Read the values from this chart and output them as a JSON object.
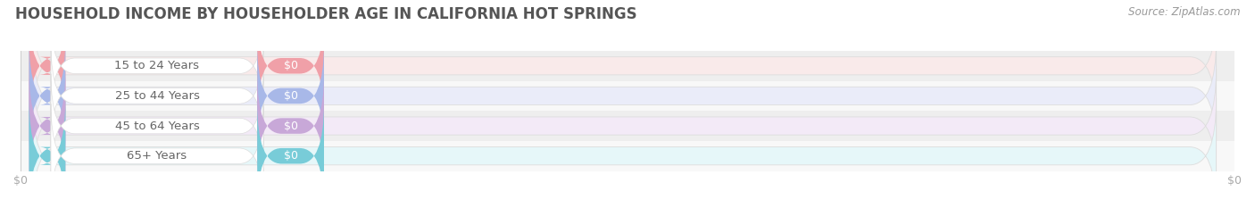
{
  "title": "HOUSEHOLD INCOME BY HOUSEHOLDER AGE IN CALIFORNIA HOT SPRINGS",
  "source": "Source: ZipAtlas.com",
  "categories": [
    "15 to 24 Years",
    "25 to 44 Years",
    "45 to 64 Years",
    "65+ Years"
  ],
  "values": [
    0,
    0,
    0,
    0
  ],
  "value_labels": [
    "$0",
    "$0",
    "$0",
    "$0"
  ],
  "bar_colors": [
    "#f0a0a8",
    "#a8b8e8",
    "#c8a8d8",
    "#78ccd8"
  ],
  "bar_bg_colors": [
    "#f9eaea",
    "#eaecf9",
    "#f3eaf7",
    "#e6f7f9"
  ],
  "row_bg_even": "#eeeeee",
  "row_bg_odd": "#f8f8f8",
  "title_color": "#555555",
  "title_fontsize": 12,
  "label_fontsize": 9.5,
  "value_fontsize": 9,
  "source_fontsize": 8.5,
  "source_color": "#999999",
  "background_color": "#ffffff",
  "tick_label_color": "#aaaaaa",
  "grid_color": "#cccccc",
  "pill_label_bg": "#f0f0f0",
  "pill_border_color": "#dddddd"
}
